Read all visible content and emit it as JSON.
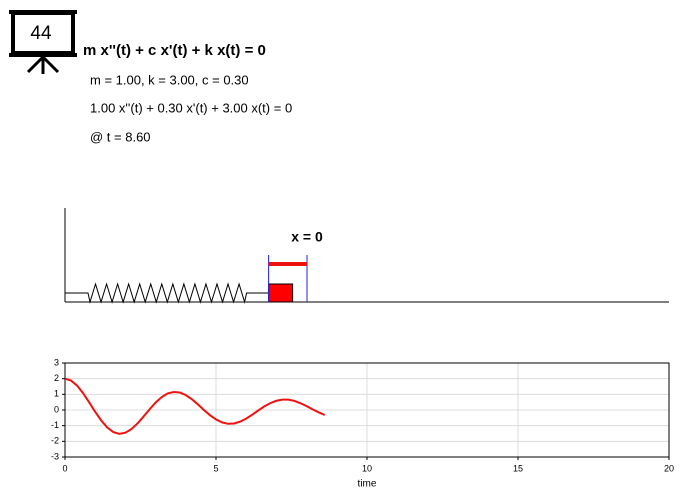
{
  "header": {
    "slide_number": "44",
    "equation": "m x''(t) + c x'(t) + k x(t) = 0",
    "params": "m = 1.00, k = 3.00, c = 0.30",
    "substituted": "1.00 x''(t) + 0.30 x'(t) + 3.00 x(t) = 0",
    "time_label": "@ t = 8.60"
  },
  "scene": {
    "zero_label": "x = 0"
  },
  "chart_data": {
    "type": "line",
    "xlabel": "time",
    "x": [
      0,
      0.2,
      0.4,
      0.6,
      0.8,
      1.0,
      1.2,
      1.4,
      1.6,
      1.8,
      2.0,
      2.2,
      2.4,
      2.6,
      2.8,
      3.0,
      3.2,
      3.4,
      3.6,
      3.8,
      4.0,
      4.2,
      4.4,
      4.6,
      4.8,
      5.0,
      5.2,
      5.4,
      5.6,
      5.8,
      6.0,
      6.2,
      6.4,
      6.6,
      6.8,
      7.0,
      7.2,
      7.4,
      7.6,
      7.8,
      8.0,
      8.2,
      8.4,
      8.6
    ],
    "series": [
      {
        "color": "#ee1111",
        "values": [
          2,
          1.88,
          1.56,
          1.07,
          0.49,
          -0.12,
          -0.67,
          -1.12,
          -1.41,
          -1.52,
          -1.45,
          -1.22,
          -0.86,
          -0.42,
          0.04,
          0.47,
          0.82,
          1.06,
          1.15,
          1.12,
          0.95,
          0.69,
          0.36,
          0.0,
          -0.33,
          -0.6,
          -0.79,
          -0.88,
          -0.86,
          -0.74,
          -0.55,
          -0.3,
          -0.03,
          0.23,
          0.44,
          0.59,
          0.66,
          0.66,
          0.58,
          0.43,
          0.25,
          0.04,
          -0.15,
          -0.32
        ]
      }
    ],
    "xlim": [
      0,
      20
    ],
    "xticks": [
      0,
      5,
      10,
      15,
      20
    ],
    "ylim": [
      -3,
      3
    ],
    "yticks": [
      -3,
      -2,
      -1,
      0,
      1,
      2,
      3
    ],
    "grid": true
  }
}
